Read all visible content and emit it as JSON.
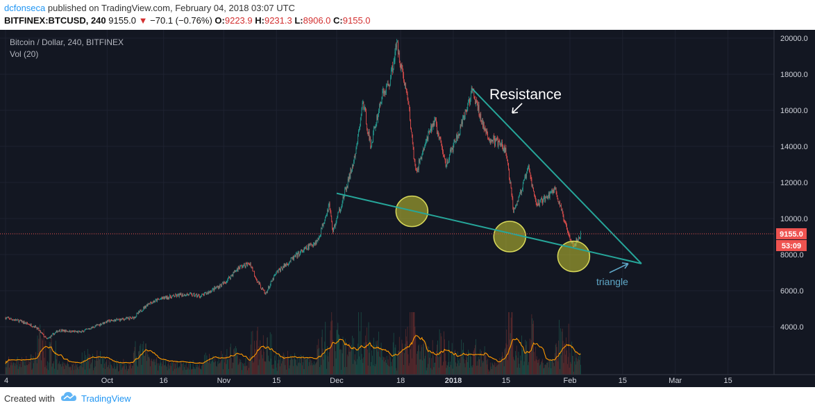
{
  "header": {
    "author": "dcfonseca",
    "published_text": "published on TradingView.com, February 04, 2018 03:07 UTC",
    "symbol_text": "BITFINEX:BTCUSD, 240",
    "last_price": "9155.0",
    "change_arrow": "▼",
    "change_text": "−70.1 (−0.76%)",
    "open_label": "O:",
    "open_value": "9223.9",
    "high_label": "H:",
    "high_value": "9231.3",
    "low_label": "L:",
    "low_value": "8906.0",
    "close_label": "C:",
    "close_value": "9155.0"
  },
  "chart_data": {
    "type": "candlestick",
    "title": "Bitcoin / Dollar, 240, BITFINEX",
    "indicator_label": "Vol (20)",
    "y_ticks": [
      "20000.0",
      "18000.0",
      "16000.0",
      "14000.0",
      "12000.0",
      "10000.0",
      "8000.0",
      "6000.0",
      "4000.0"
    ],
    "y_tick_values": [
      20000,
      18000,
      16000,
      14000,
      12000,
      10000,
      8000,
      6000,
      4000
    ],
    "ylim": [
      2000,
      20800
    ],
    "x_ticks": [
      "4",
      "Oct",
      "16",
      "Nov",
      "15",
      "Dec",
      "18",
      "2018",
      "15",
      "Feb",
      "15",
      "Mar",
      "15"
    ],
    "current_price_label": "9155.0",
    "countdown_label": "53:09",
    "price_path": [
      {
        "t": "2017-09-04",
        "v": 4500
      },
      {
        "t": "2017-09-08",
        "v": 4300
      },
      {
        "t": "2017-09-12",
        "v": 4000
      },
      {
        "t": "2017-09-15",
        "v": 3300
      },
      {
        "t": "2017-09-18",
        "v": 3800
      },
      {
        "t": "2017-09-24",
        "v": 3700
      },
      {
        "t": "2017-10-01",
        "v": 4300
      },
      {
        "t": "2017-10-08",
        "v": 4500
      },
      {
        "t": "2017-10-12",
        "v": 5300
      },
      {
        "t": "2017-10-16",
        "v": 5600
      },
      {
        "t": "2017-10-22",
        "v": 5800
      },
      {
        "t": "2017-10-26",
        "v": 5700
      },
      {
        "t": "2017-11-01",
        "v": 6400
      },
      {
        "t": "2017-11-05",
        "v": 7300
      },
      {
        "t": "2017-11-08",
        "v": 7500
      },
      {
        "t": "2017-11-10",
        "v": 6500
      },
      {
        "t": "2017-11-12",
        "v": 5800
      },
      {
        "t": "2017-11-15",
        "v": 7000
      },
      {
        "t": "2017-11-20",
        "v": 7900
      },
      {
        "t": "2017-11-26",
        "v": 8800
      },
      {
        "t": "2017-11-29",
        "v": 10800
      },
      {
        "t": "2017-11-30",
        "v": 9300
      },
      {
        "t": "2017-12-03",
        "v": 11300
      },
      {
        "t": "2017-12-06",
        "v": 13500
      },
      {
        "t": "2017-12-08",
        "v": 16500
      },
      {
        "t": "2017-12-10",
        "v": 14000
      },
      {
        "t": "2017-12-13",
        "v": 16800
      },
      {
        "t": "2017-12-15",
        "v": 17500
      },
      {
        "t": "2017-12-17",
        "v": 19700
      },
      {
        "t": "2017-12-20",
        "v": 16500
      },
      {
        "t": "2017-12-22",
        "v": 12500
      },
      {
        "t": "2017-12-24",
        "v": 13800
      },
      {
        "t": "2017-12-27",
        "v": 15500
      },
      {
        "t": "2017-12-30",
        "v": 13000
      },
      {
        "t": "2018-01-03",
        "v": 15000
      },
      {
        "t": "2018-01-06",
        "v": 17100
      },
      {
        "t": "2018-01-10",
        "v": 14500
      },
      {
        "t": "2018-01-13",
        "v": 14200
      },
      {
        "t": "2018-01-15",
        "v": 13700
      },
      {
        "t": "2018-01-17",
        "v": 10500
      },
      {
        "t": "2018-01-19",
        "v": 11500
      },
      {
        "t": "2018-01-21",
        "v": 12800
      },
      {
        "t": "2018-01-23",
        "v": 10800
      },
      {
        "t": "2018-01-26",
        "v": 11200
      },
      {
        "t": "2018-01-28",
        "v": 11700
      },
      {
        "t": "2018-01-30",
        "v": 10200
      },
      {
        "t": "2018-02-01",
        "v": 9000
      },
      {
        "t": "2018-02-02",
        "v": 8500
      },
      {
        "t": "2018-02-04",
        "v": 9155
      }
    ],
    "annotations": {
      "resistance_label": "Resistance",
      "triangle_label": "triangle",
      "resistance_line": [
        {
          "t": "2018-01-06",
          "v": 17200
        },
        {
          "t": "2018-02-20",
          "v": 7500
        }
      ],
      "support_line": [
        {
          "t": "2017-12-01",
          "v": 11400
        },
        {
          "t": "2018-02-20",
          "v": 7500
        }
      ],
      "circles": [
        {
          "t": "2017-12-21",
          "v": 10400
        },
        {
          "t": "2018-01-16",
          "v": 9000
        },
        {
          "t": "2018-02-02",
          "v": 7900
        }
      ]
    },
    "colors": {
      "background": "#131722",
      "up": "#26a69a",
      "down": "#ef5350",
      "volume_ma": "#ff9800",
      "trendline": "#26a69a",
      "circle_fill": "#c8c832",
      "price_line": "#ef5350",
      "price_badge": "#ef5350"
    },
    "grid": true
  },
  "footer": {
    "created_text": "Created with",
    "brand": "TradingView"
  }
}
